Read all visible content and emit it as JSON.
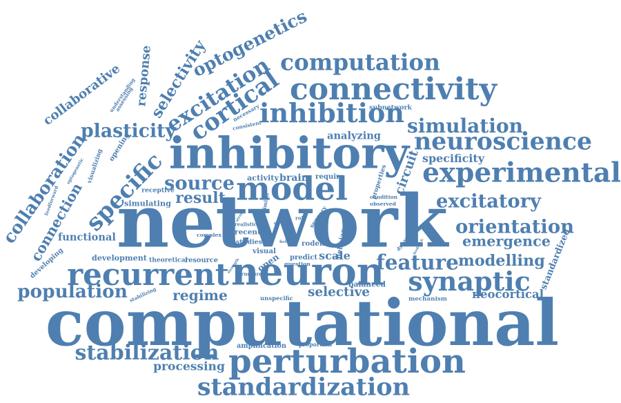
{
  "colors": {
    "word": "#4e7fb0",
    "background": "#ffffff"
  },
  "words": [
    "network",
    "computational",
    "inhibitory",
    "neuron",
    "perturbation",
    "recurrent",
    "model",
    "experimental",
    "connectivity",
    "specific",
    "cortical",
    "standardization",
    "inhibition",
    "computation",
    "neuroscience",
    "optogenetics",
    "excitation",
    "synaptic",
    "collaboration",
    "population",
    "stabilization",
    "feature",
    "orientation",
    "simulation",
    "connection",
    "plasticity",
    "selectivity",
    "response",
    "excitatory",
    "modelling",
    "emergence",
    "source",
    "result",
    "regime",
    "selective",
    "collaborative",
    "open",
    "scale",
    "circuit",
    "neocortical",
    "processing",
    "functional",
    "standardized",
    "specificity",
    "analyzing",
    "subnetwork",
    "understanding",
    "assessing",
    "necessary",
    "consistent",
    "opening",
    "visualizing",
    "optogenetic",
    "feedforward",
    "developing",
    "receptive",
    "simulating",
    "activity",
    "brain",
    "require",
    "properties",
    "condition",
    "observed",
    "similar",
    "strong",
    "realistic",
    "role",
    "prior",
    "sensory",
    "hebbian",
    "dynamic",
    "layer",
    "complex",
    "recent",
    "studies",
    "field",
    "rodent",
    "development",
    "theoretical",
    "resource",
    "visual",
    "predict",
    "question",
    "strength",
    "structure",
    "balanced",
    "unspecific",
    "mechanism",
    "feedback",
    "stabilizing",
    "amplification",
    "proportion"
  ]
}
